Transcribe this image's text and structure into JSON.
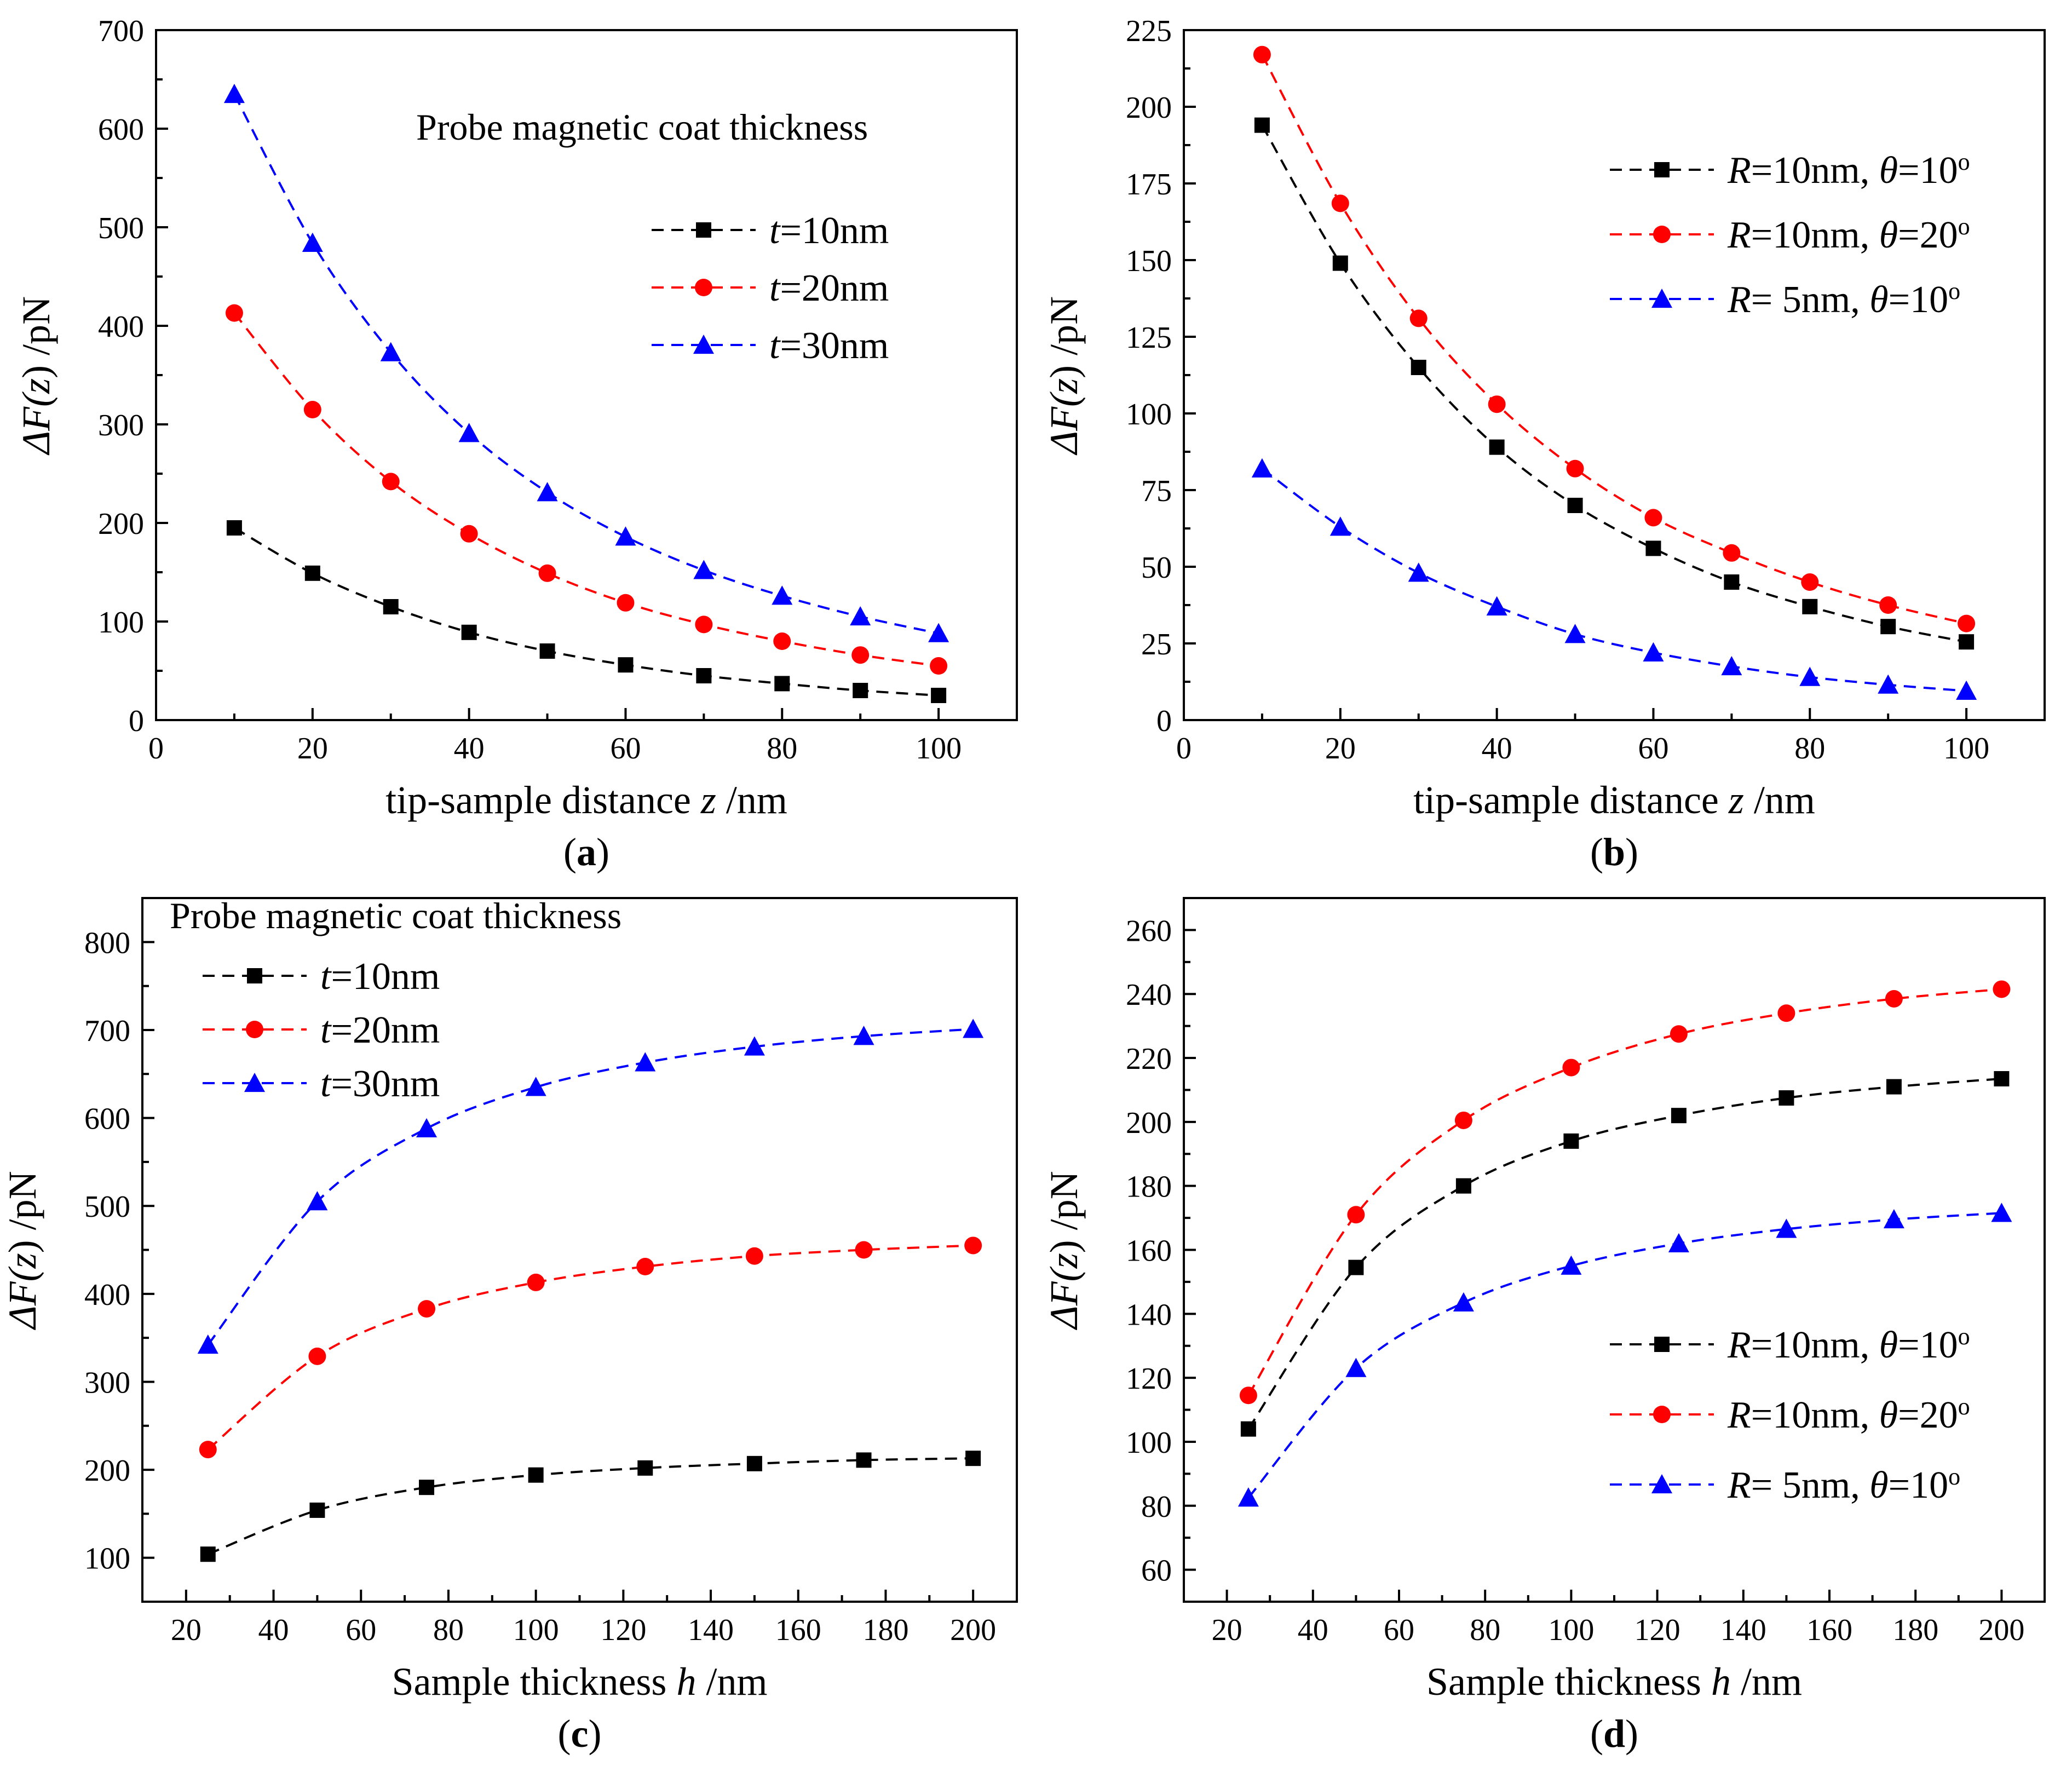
{
  "figure": {
    "background": "#ffffff"
  },
  "colors": {
    "black": "#000000",
    "red": "#ff0000",
    "blue": "#0000ff"
  },
  "chart_data": [
    {
      "panel": "a",
      "panel_label": "a",
      "type": "line",
      "xlabel_main": "tip-sample distance ",
      "xlabel_var": "z",
      "xlabel_unit": " /nm",
      "ylabel_pre": "ΔF(",
      "ylabel_var": "z",
      "ylabel_post": ") /pN",
      "xlim": [
        0,
        110
      ],
      "ylim": [
        0,
        700
      ],
      "xticks": [
        0,
        20,
        40,
        60,
        80,
        100
      ],
      "yticks": [
        0,
        100,
        200,
        300,
        400,
        500,
        600,
        700
      ],
      "grid": false,
      "legend_title": "Probe magnetic coat thickness",
      "legend_position": "top-right",
      "x": [
        10,
        20,
        30,
        40,
        50,
        60,
        70,
        80,
        90,
        100
      ],
      "series": [
        {
          "label_var": "t",
          "label_rest": "=10nm",
          "marker": "square",
          "color": "#000000",
          "values": [
            195,
            149,
            115,
            89,
            70,
            56,
            45,
            37,
            30,
            25
          ]
        },
        {
          "label_var": "t",
          "label_rest": "=20nm",
          "marker": "circle",
          "color": "#ff0000",
          "values": [
            413,
            315,
            242,
            189,
            149,
            119,
            97,
            80,
            66,
            55
          ]
        },
        {
          "label_var": "t",
          "label_rest": "=30nm",
          "marker": "triangle",
          "color": "#0000ff",
          "values": [
            635,
            484,
            373,
            291,
            231,
            186,
            152,
            126,
            105,
            88
          ]
        }
      ]
    },
    {
      "panel": "b",
      "panel_label": "b",
      "type": "line",
      "xlabel_main": "tip-sample distance ",
      "xlabel_var": "z",
      "xlabel_unit": " /nm",
      "ylabel_pre": "ΔF(",
      "ylabel_var": "z",
      "ylabel_post": ") /pN",
      "xlim": [
        0,
        110
      ],
      "ylim": [
        0,
        225
      ],
      "xticks": [
        0,
        20,
        40,
        60,
        80,
        100
      ],
      "yticks": [
        0,
        25,
        50,
        75,
        100,
        125,
        150,
        175,
        200,
        225
      ],
      "grid": false,
      "legend_position": "top-right",
      "x": [
        10,
        20,
        30,
        40,
        50,
        60,
        70,
        80,
        90,
        100
      ],
      "series": [
        {
          "label_r": "R",
          "label_size": "=10nm, ",
          "label_theta": "θ",
          "label_angle": "=10",
          "label_deg": "o",
          "marker": "square",
          "color": "#000000",
          "values": [
            194,
            149,
            115,
            89,
            70,
            56,
            45,
            37,
            30.5,
            25.5
          ]
        },
        {
          "label_r": "R",
          "label_size": "=10nm, ",
          "label_theta": "θ",
          "label_angle": "=20",
          "label_deg": "o",
          "marker": "circle",
          "color": "#ff0000",
          "values": [
            217,
            168.5,
            131,
            103,
            82,
            66,
            54.5,
            45,
            37.5,
            31.5
          ]
        },
        {
          "label_r": "R",
          "label_size": "= 5nm, ",
          "label_theta": "θ",
          "label_angle": "=10",
          "label_deg": "o",
          "marker": "triangle",
          "color": "#0000ff",
          "values": [
            82,
            63,
            48,
            37,
            28,
            22,
            17.5,
            14,
            11.5,
            9.5
          ]
        }
      ]
    },
    {
      "panel": "c",
      "panel_label": "c",
      "type": "line",
      "xlabel_main": "Sample thickness ",
      "xlabel_var": "h",
      "xlabel_unit": " /nm",
      "ylabel_pre": "ΔF(",
      "ylabel_var": "z",
      "ylabel_post": ") /pN",
      "xlim": [
        10,
        210
      ],
      "ylim": [
        50,
        850
      ],
      "xticks": [
        20,
        40,
        60,
        80,
        100,
        120,
        140,
        160,
        180,
        200
      ],
      "yticks": [
        100,
        200,
        300,
        400,
        500,
        600,
        700,
        800
      ],
      "grid": false,
      "legend_title": "Probe magnetic coat thickness",
      "legend_position": "top-left",
      "x": [
        25,
        50,
        75,
        100,
        125,
        150,
        175,
        200
      ],
      "series": [
        {
          "label_var": "t",
          "label_rest": "=10nm",
          "marker": "square",
          "color": "#000000",
          "values": [
            104,
            154,
            180,
            194,
            202,
            207,
            211,
            213
          ]
        },
        {
          "label_var": "t",
          "label_rest": "=20nm",
          "marker": "circle",
          "color": "#ff0000",
          "values": [
            223,
            329,
            383,
            413,
            431,
            443,
            450,
            455
          ]
        },
        {
          "label_var": "t",
          "label_rest": "=30nm",
          "marker": "triangle",
          "color": "#0000ff",
          "values": [
            342,
            505,
            588,
            635,
            663,
            681,
            693,
            701
          ]
        }
      ]
    },
    {
      "panel": "d",
      "panel_label": "d",
      "type": "line",
      "xlabel_main": "Sample thickness ",
      "xlabel_var": "h",
      "xlabel_unit": " /nm",
      "ylabel_pre": "ΔF(",
      "ylabel_var": "z",
      "ylabel_post": ") /pN",
      "xlim": [
        10,
        210
      ],
      "ylim": [
        50,
        270
      ],
      "xticks": [
        20,
        40,
        60,
        80,
        100,
        120,
        140,
        160,
        180,
        200
      ],
      "yticks": [
        60,
        80,
        100,
        120,
        140,
        160,
        180,
        200,
        220,
        240,
        260
      ],
      "grid": false,
      "legend_position": "bottom-right",
      "x": [
        25,
        50,
        75,
        100,
        125,
        150,
        175,
        200
      ],
      "series": [
        {
          "label_r": "R",
          "label_size": "=10nm, ",
          "label_theta": "θ",
          "label_angle": "=10",
          "label_deg": "o",
          "marker": "square",
          "color": "#000000",
          "values": [
            104,
            154.5,
            180,
            194,
            202,
            207.5,
            211,
            213.5
          ]
        },
        {
          "label_r": "R",
          "label_size": "=10nm, ",
          "label_theta": "θ",
          "label_angle": "=20",
          "label_deg": "o",
          "marker": "circle",
          "color": "#ff0000",
          "values": [
            114.5,
            171,
            200.5,
            217,
            227.5,
            234,
            238.5,
            241.5
          ]
        },
        {
          "label_r": "R",
          "label_size": "= 5nm, ",
          "label_theta": "θ",
          "label_angle": "=10",
          "label_deg": "o",
          "marker": "triangle",
          "color": "#0000ff",
          "values": [
            82.5,
            123,
            143.5,
            155,
            162,
            166.5,
            169.5,
            171.5
          ]
        }
      ]
    }
  ]
}
